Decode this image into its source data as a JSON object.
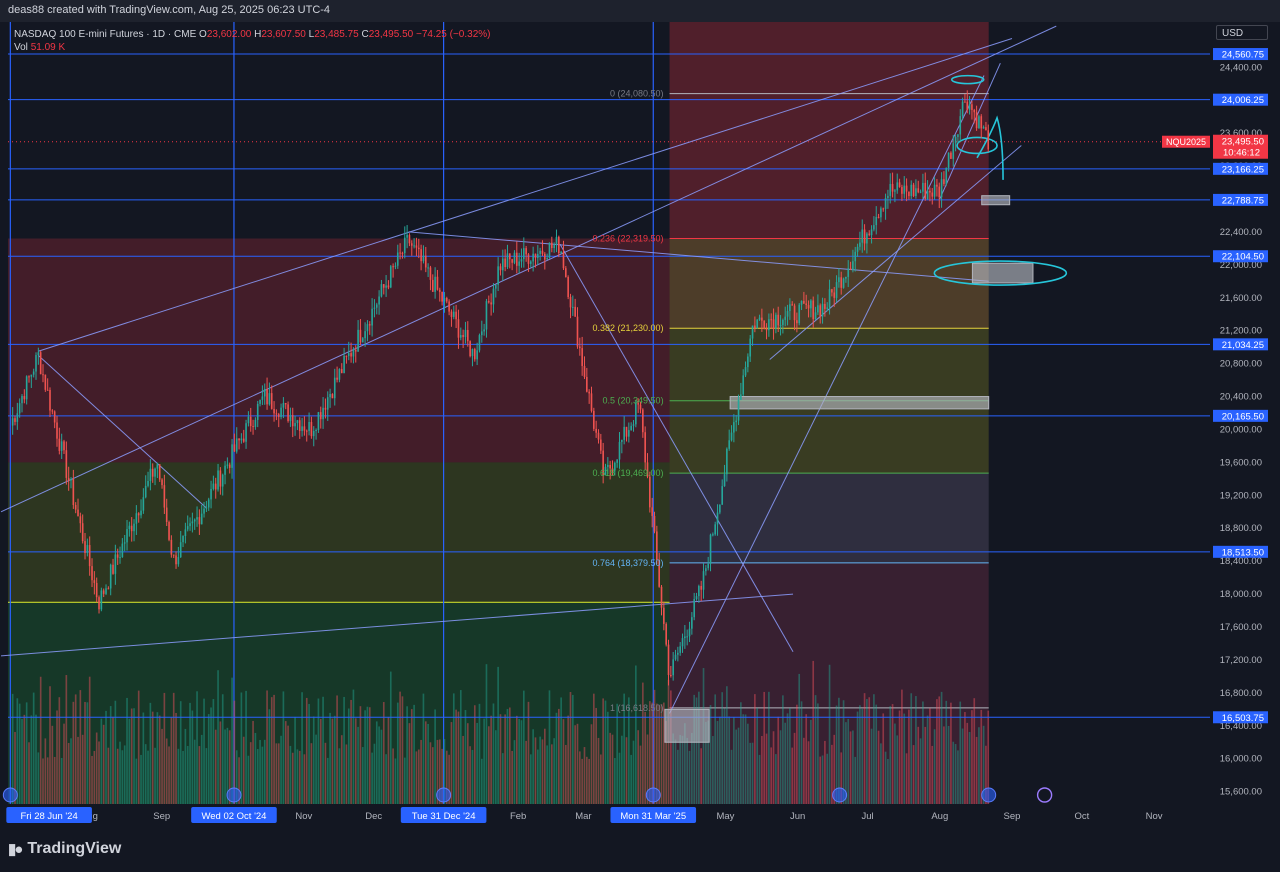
{
  "header": {
    "created_by": "deas88 created with TradingView.com, Aug 25, 2025 06:23 UTC-4"
  },
  "legend": {
    "symbol": "NASDAQ 100 E-mini Futures · 1D · CME",
    "o_label": "O",
    "o_value": "23,602.00",
    "h_label": "H",
    "h_value": "23,607.50",
    "l_label": "L",
    "l_value": "23,485.75",
    "c_label": "C",
    "c_value": "23,495.50",
    "change": "−74.25 (−0.32%)",
    "vol_label": "Vol",
    "vol_value": "51.09 K"
  },
  "currency": "USD",
  "brand": "TradingView",
  "colors": {
    "up": "#26a69a",
    "down": "#ef5350",
    "hline": "#2962ff",
    "bg": "#131722"
  },
  "chart_data": {
    "type": "candlestick",
    "symbol": "NQU2025",
    "y_range": [
      15450,
      24950
    ],
    "price_ticks": [
      "24,400.00",
      "24,000.00",
      "23,600.00",
      "23,200.00",
      "22,400.00",
      "22,000.00",
      "21,600.00",
      "21,200.00",
      "20,800.00",
      "20,400.00",
      "20,000.00",
      "19,600.00",
      "19,200.00",
      "18,800.00",
      "18,400.00",
      "18,000.00",
      "17,600.00",
      "17,200.00",
      "16,800.00",
      "16,400.00",
      "16,000.00",
      "15,600.00"
    ],
    "level_labels": [
      "24,560.75",
      "24,006.25",
      "23,166.25",
      "22,788.75",
      "22,104.50",
      "21,034.25",
      "20,165.50",
      "18,513.50",
      "16,503.75"
    ],
    "last_price": {
      "symbol": "NQU2025",
      "price": "23,495.50",
      "countdown": "10:46:12"
    },
    "fib_labels": [
      {
        "ratio": "0 (24,080.50)",
        "price": 24080.5
      },
      {
        "ratio": "0.236 (22,319.50)",
        "price": 22319.5
      },
      {
        "ratio": "0.382 (21,230.00)",
        "price": 21230
      },
      {
        "ratio": "0.5 (20,349.50)",
        "price": 20349.5
      },
      {
        "ratio": "0.618 (19,469.00)",
        "price": 19469
      },
      {
        "ratio": "0.764 (18,379.50)",
        "price": 18379.5
      },
      {
        "ratio": "1 (16,618.50)",
        "price": 16618.5
      }
    ],
    "time_labels": [
      "Aug",
      "Sep",
      "Nov",
      "Dec",
      "Feb",
      "Mar",
      "May",
      "Jun",
      "Jul",
      "Aug",
      "Sep",
      "Oct",
      "Nov"
    ],
    "highlighted_dates": [
      "Fri 28 Jun '24",
      "Wed 02 Oct '24",
      "Tue 31 Dec '24",
      "Mon 31 Mar '25"
    ],
    "swings": [
      {
        "date": "2024-06-28",
        "price": 20050
      },
      {
        "date": "2024-07-10",
        "price": 20900
      },
      {
        "date": "2024-08-05",
        "price": 17900
      },
      {
        "date": "2024-08-30",
        "price": 19600
      },
      {
        "date": "2024-09-06",
        "price": 18400
      },
      {
        "date": "2024-10-15",
        "price": 20400
      },
      {
        "date": "2024-11-04",
        "price": 20000
      },
      {
        "date": "2024-12-16",
        "price": 22300
      },
      {
        "date": "2025-01-13",
        "price": 20900
      },
      {
        "date": "2025-01-24",
        "price": 22000
      },
      {
        "date": "2025-02-19",
        "price": 22250
      },
      {
        "date": "2025-03-10",
        "price": 19400
      },
      {
        "date": "2025-03-25",
        "price": 20300
      },
      {
        "date": "2025-04-07",
        "price": 17000
      },
      {
        "date": "2025-04-21",
        "price": 18100
      },
      {
        "date": "2025-05-13",
        "price": 21300
      },
      {
        "date": "2025-06-13",
        "price": 21500
      },
      {
        "date": "2025-07-10",
        "price": 22900
      },
      {
        "date": "2025-08-01",
        "price": 22900
      },
      {
        "date": "2025-08-12",
        "price": 24050
      },
      {
        "date": "2025-08-22",
        "price": 23500
      }
    ]
  }
}
